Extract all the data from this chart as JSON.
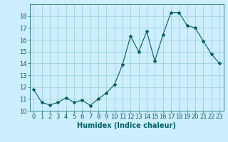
{
  "x": [
    0,
    1,
    2,
    3,
    4,
    5,
    6,
    7,
    8,
    9,
    10,
    11,
    12,
    13,
    14,
    15,
    16,
    17,
    18,
    19,
    20,
    21,
    22,
    23
  ],
  "y": [
    11.8,
    10.7,
    10.5,
    10.7,
    11.1,
    10.7,
    10.9,
    10.45,
    11.0,
    11.5,
    12.2,
    13.9,
    16.3,
    15.0,
    16.7,
    14.2,
    16.4,
    18.3,
    18.3,
    17.2,
    17.0,
    15.9,
    14.8,
    14.0
  ],
  "line_color": "#006060",
  "marker": "*",
  "marker_size": 3,
  "xlabel": "Humidex (Indice chaleur)",
  "xlim": [
    -0.5,
    23.5
  ],
  "ylim": [
    10,
    19
  ],
  "yticks": [
    10,
    11,
    12,
    13,
    14,
    15,
    16,
    17,
    18
  ],
  "xticks": [
    0,
    1,
    2,
    3,
    4,
    5,
    6,
    7,
    8,
    9,
    10,
    11,
    12,
    13,
    14,
    15,
    16,
    17,
    18,
    19,
    20,
    21,
    22,
    23
  ],
  "bg_color": "#cceeff",
  "grid_color": "#99cccc",
  "font_color": "#006060",
  "tick_fontsize": 6,
  "xlabel_fontsize": 7
}
